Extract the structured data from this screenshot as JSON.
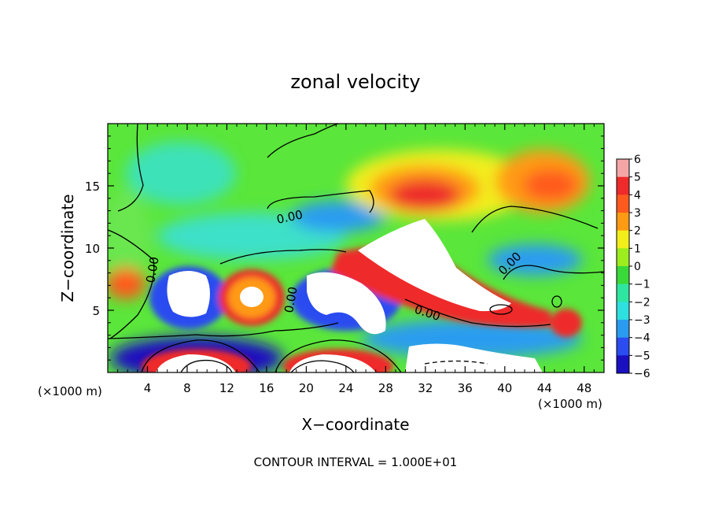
{
  "chart_data": {
    "type": "heatmap",
    "title": "zonal velocity",
    "xlabel": "X−coordinate",
    "ylabel": "Z−coordinate",
    "x_unit_left": "(×1000 m)",
    "x_unit_right": "(×1000 m)",
    "footer": "CONTOUR INTERVAL = 1.000E+01",
    "xlim": [
      0,
      50
    ],
    "ylim": [
      0,
      20
    ],
    "x_ticks": [
      4,
      8,
      12,
      16,
      20,
      24,
      28,
      32,
      36,
      40,
      44,
      48
    ],
    "y_ticks": [
      5,
      10,
      15
    ],
    "colorbar": {
      "levels": [
        6,
        5,
        4,
        3,
        2,
        1,
        0,
        -1,
        -2,
        -3,
        -4,
        -5,
        -6
      ],
      "colors": [
        "#f4a6a6",
        "#ee2a2a",
        "#ff5a1e",
        "#ff9a14",
        "#f2ee1a",
        "#9cec1e",
        "#3ad93a",
        "#2ee6a0",
        "#2ee0e0",
        "#2a9cf0",
        "#2a4cf0",
        "#1a10c0",
        "#7a10a6"
      ]
    },
    "contour_labels": [
      "0.00",
      "0.00",
      "0.00",
      "0.00",
      "0.00"
    ]
  }
}
